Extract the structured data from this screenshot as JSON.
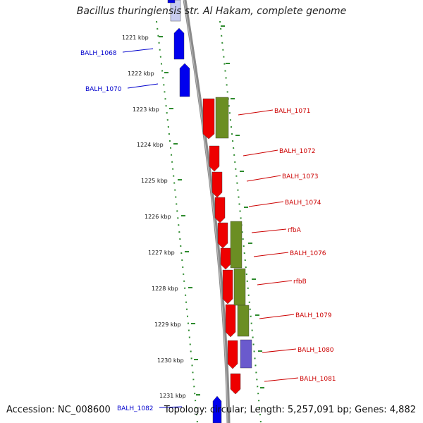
{
  "title": "Bacillus thuringiensis str. Al Hakam, complete genome",
  "footer": {
    "accession": "Accession: NC_008600",
    "summary": "Topology: circular; Length: 5,257,091 bp; Genes: 4,882"
  },
  "colors": {
    "backbone": "#888888",
    "scale_ticks": "#2e8b2e",
    "forward_label": "#0000cc",
    "reverse_label": "#cc0000",
    "gene_forward": "#0000ee",
    "gene_reverse": "#ee0000",
    "feature_olive": "#6b8e23",
    "feature_purple": "#6a5acd"
  },
  "scale_labels": [
    "1221 kbp",
    "1222 kbp",
    "1223 kbp",
    "1224 kbp",
    "1225 kbp",
    "1226 kbp",
    "1227 kbp",
    "1228 kbp",
    "1229 kbp",
    "1230 kbp",
    "1231 kbp"
  ],
  "forward_genes": [
    "BALH_1068",
    "BALH_1070",
    "BALH_1082"
  ],
  "reverse_genes": [
    "BALH_1071",
    "BALH_1072",
    "BALH_1073",
    "BALH_1074",
    "rfbA",
    "BALH_1076",
    "rfbB",
    "BALH_1079",
    "BALH_1080",
    "BALH_1081"
  ]
}
